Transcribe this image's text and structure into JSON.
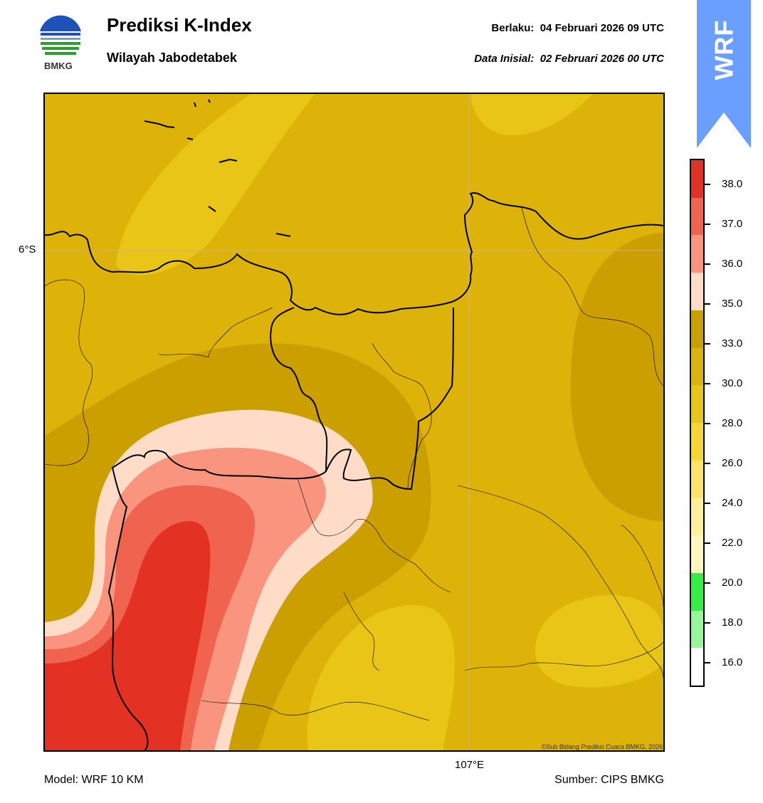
{
  "header": {
    "title": "Prediksi K-Index",
    "subtitle": "Wilayah Jabodetabek",
    "valid_label": "Berlaku:  04 Februari 2026 09 UTC",
    "init_label": "Data Inisial:  02 Februari 2026 00 UTC",
    "logo_text": "BMKG"
  },
  "badge": {
    "text": "WRF",
    "color": "#6a9fff"
  },
  "map": {
    "lat_label": "6°S",
    "lon_label": "107°E",
    "credit": "©Sub Bidang Prediksi Cuaca BMKG, 2026",
    "area_names": [],
    "fill_colors": {
      "c26_28": "#e8c516",
      "c28_30": "#ddb30a",
      "c30_33": "#cc9f00",
      "c33_35": "#ffdcc8",
      "c35_36": "#f9957f",
      "c36_37": "#f0634f",
      "c37_38": "#e33223"
    }
  },
  "legend": {
    "ticks": [
      "38.0",
      "37.0",
      "36.0",
      "35.0",
      "33.0",
      "30.0",
      "28.0",
      "26.0",
      "24.0",
      "22.0",
      "20.0",
      "18.0",
      "16.0"
    ],
    "colors_top_to_bottom": [
      "#e33223",
      "#f0634f",
      "#f9957f",
      "#ffdcc8",
      "#cc9f00",
      "#ddb30a",
      "#e8c516",
      "#f5d634",
      "#fde36a",
      "#fef09c",
      "#fff6c0",
      "#33ee44",
      "#99f59a",
      "#ffffff"
    ]
  },
  "footer": {
    "model": "Model: WRF 10 KM",
    "source": "Sumber: CIPS BMKG"
  }
}
